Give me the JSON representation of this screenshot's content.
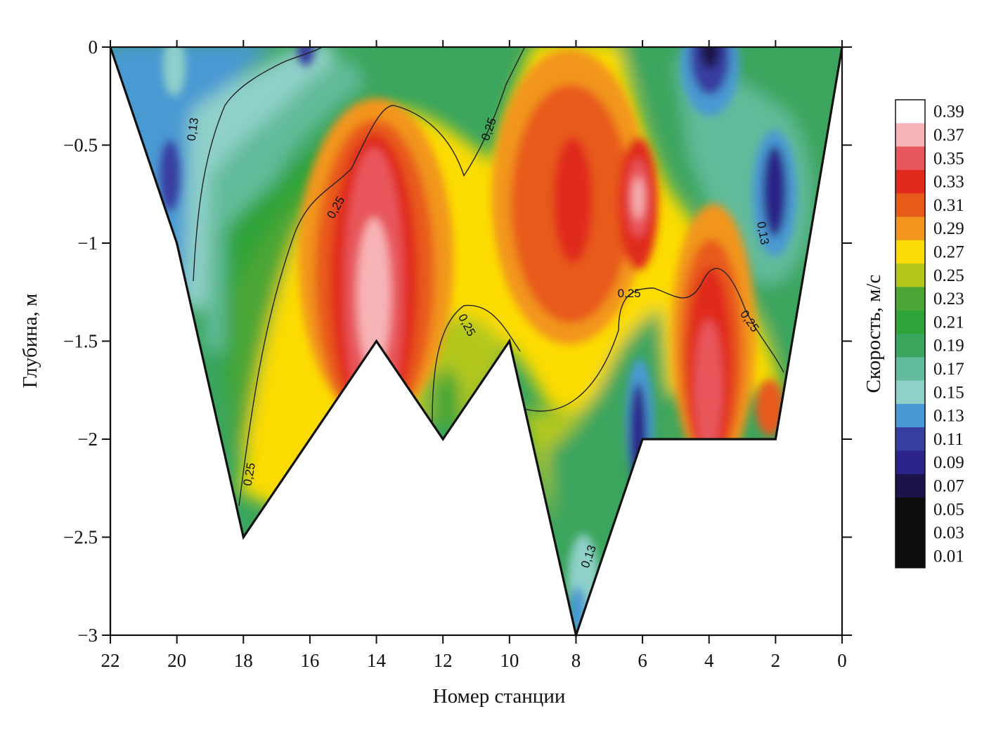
{
  "chart_data": {
    "type": "heatmap",
    "subtype": "filled-contour-section",
    "title": "",
    "xlabel": "Номер станции",
    "ylabel": "Глубина, м",
    "colorbar_label": "Скорость, м/с",
    "xlim": [
      22,
      0
    ],
    "ylim": [
      -3,
      0
    ],
    "x_ticks": [
      "22",
      "20",
      "18",
      "16",
      "14",
      "12",
      "10",
      "8",
      "6",
      "4",
      "2",
      "0"
    ],
    "x_tick_values": [
      22,
      20,
      18,
      16,
      14,
      12,
      10,
      8,
      6,
      4,
      2,
      0
    ],
    "y_ticks": [
      "0",
      "−0.5",
      "−1",
      "−1.5",
      "−2",
      "−2.5",
      "−3"
    ],
    "y_tick_values": [
      0,
      -0.5,
      -1,
      -1.5,
      -2,
      -2.5,
      -3
    ],
    "bottom_profile": [
      {
        "station": 22,
        "depth": 0
      },
      {
        "station": 20,
        "depth": -1.0
      },
      {
        "station": 18,
        "depth": -2.5
      },
      {
        "station": 14,
        "depth": -1.5
      },
      {
        "station": 12,
        "depth": -2.0
      },
      {
        "station": 10,
        "depth": -1.5
      },
      {
        "station": 8,
        "depth": -3.0
      },
      {
        "station": 6,
        "depth": -2.0
      },
      {
        "station": 2,
        "depth": -2.0
      },
      {
        "station": 0,
        "depth": 0
      }
    ],
    "colorbar": {
      "levels": [
        "0.39",
        "0.37",
        "0.35",
        "0.33",
        "0.31",
        "0.29",
        "0.27",
        "0.25",
        "0.23",
        "0.21",
        "0.19",
        "0.17",
        "0.15",
        "0.13",
        "0.11",
        "0.09",
        "0.07",
        "0.05",
        "0.03",
        "0.01"
      ],
      "colors": [
        "#ffffff",
        "#f7b3b6",
        "#e8575c",
        "#e02a1e",
        "#e85a1a",
        "#f2951c",
        "#fcdc06",
        "#b3c71d",
        "#4ca636",
        "#2da338",
        "#3aa55d",
        "#62bb9a",
        "#8fd0c9",
        "#4899d3",
        "#383da0",
        "#2b2387",
        "#1a1448",
        "#0d0d0d",
        "#0d0d0d",
        "#0d0d0d"
      ]
    },
    "contour_labels": [
      {
        "text": "0,13",
        "station": 19.5,
        "depth": -0.42,
        "rotate": -82
      },
      {
        "text": "0,25",
        "station": 15.2,
        "depth": -0.82,
        "rotate": -60
      },
      {
        "text": "0,25",
        "station": 10.6,
        "depth": -0.42,
        "rotate": -70
      },
      {
        "text": "0,25",
        "station": 11.3,
        "depth": -1.42,
        "rotate": 62
      },
      {
        "text": "0,25",
        "station": 6.4,
        "depth": -1.26,
        "rotate": 0
      },
      {
        "text": "0,25",
        "station": 2.8,
        "depth": -1.4,
        "rotate": 55
      },
      {
        "text": "0,13",
        "station": 2.4,
        "depth": -0.95,
        "rotate": 80
      },
      {
        "text": "0,25",
        "station": 17.8,
        "depth": -2.18,
        "rotate": -80
      },
      {
        "text": "0,13",
        "station": 7.6,
        "depth": -2.6,
        "rotate": -70
      }
    ],
    "field_blobs": [
      {
        "station": 20.3,
        "depth": -0.6,
        "rx": 0.25,
        "ry": 0.18,
        "value": "0.09"
      },
      {
        "station": 16.1,
        "depth": 0.0,
        "rx": 0.25,
        "ry": 0.07,
        "value": "0.09"
      },
      {
        "station": 4.1,
        "depth": -0.05,
        "rx": 0.6,
        "ry": 0.35,
        "value": "0.07"
      },
      {
        "station": 1.9,
        "depth": -0.75,
        "rx": 0.55,
        "ry": 0.4,
        "value": "0.09"
      },
      {
        "station": 6.0,
        "depth": -1.95,
        "rx": 0.5,
        "ry": 0.35,
        "value": "0.09"
      },
      {
        "station": 14.0,
        "depth": -1.15,
        "rx": 0.6,
        "ry": 0.7,
        "value": "0.37"
      },
      {
        "station": 8.1,
        "depth": -0.8,
        "rx": 0.55,
        "ry": 0.45,
        "value": "0.33"
      },
      {
        "station": 6.0,
        "depth": -0.8,
        "rx": 0.35,
        "ry": 0.28,
        "value": "0.37"
      },
      {
        "station": 4.1,
        "depth": -1.8,
        "rx": 0.6,
        "ry": 0.45,
        "value": "0.35"
      }
    ]
  }
}
